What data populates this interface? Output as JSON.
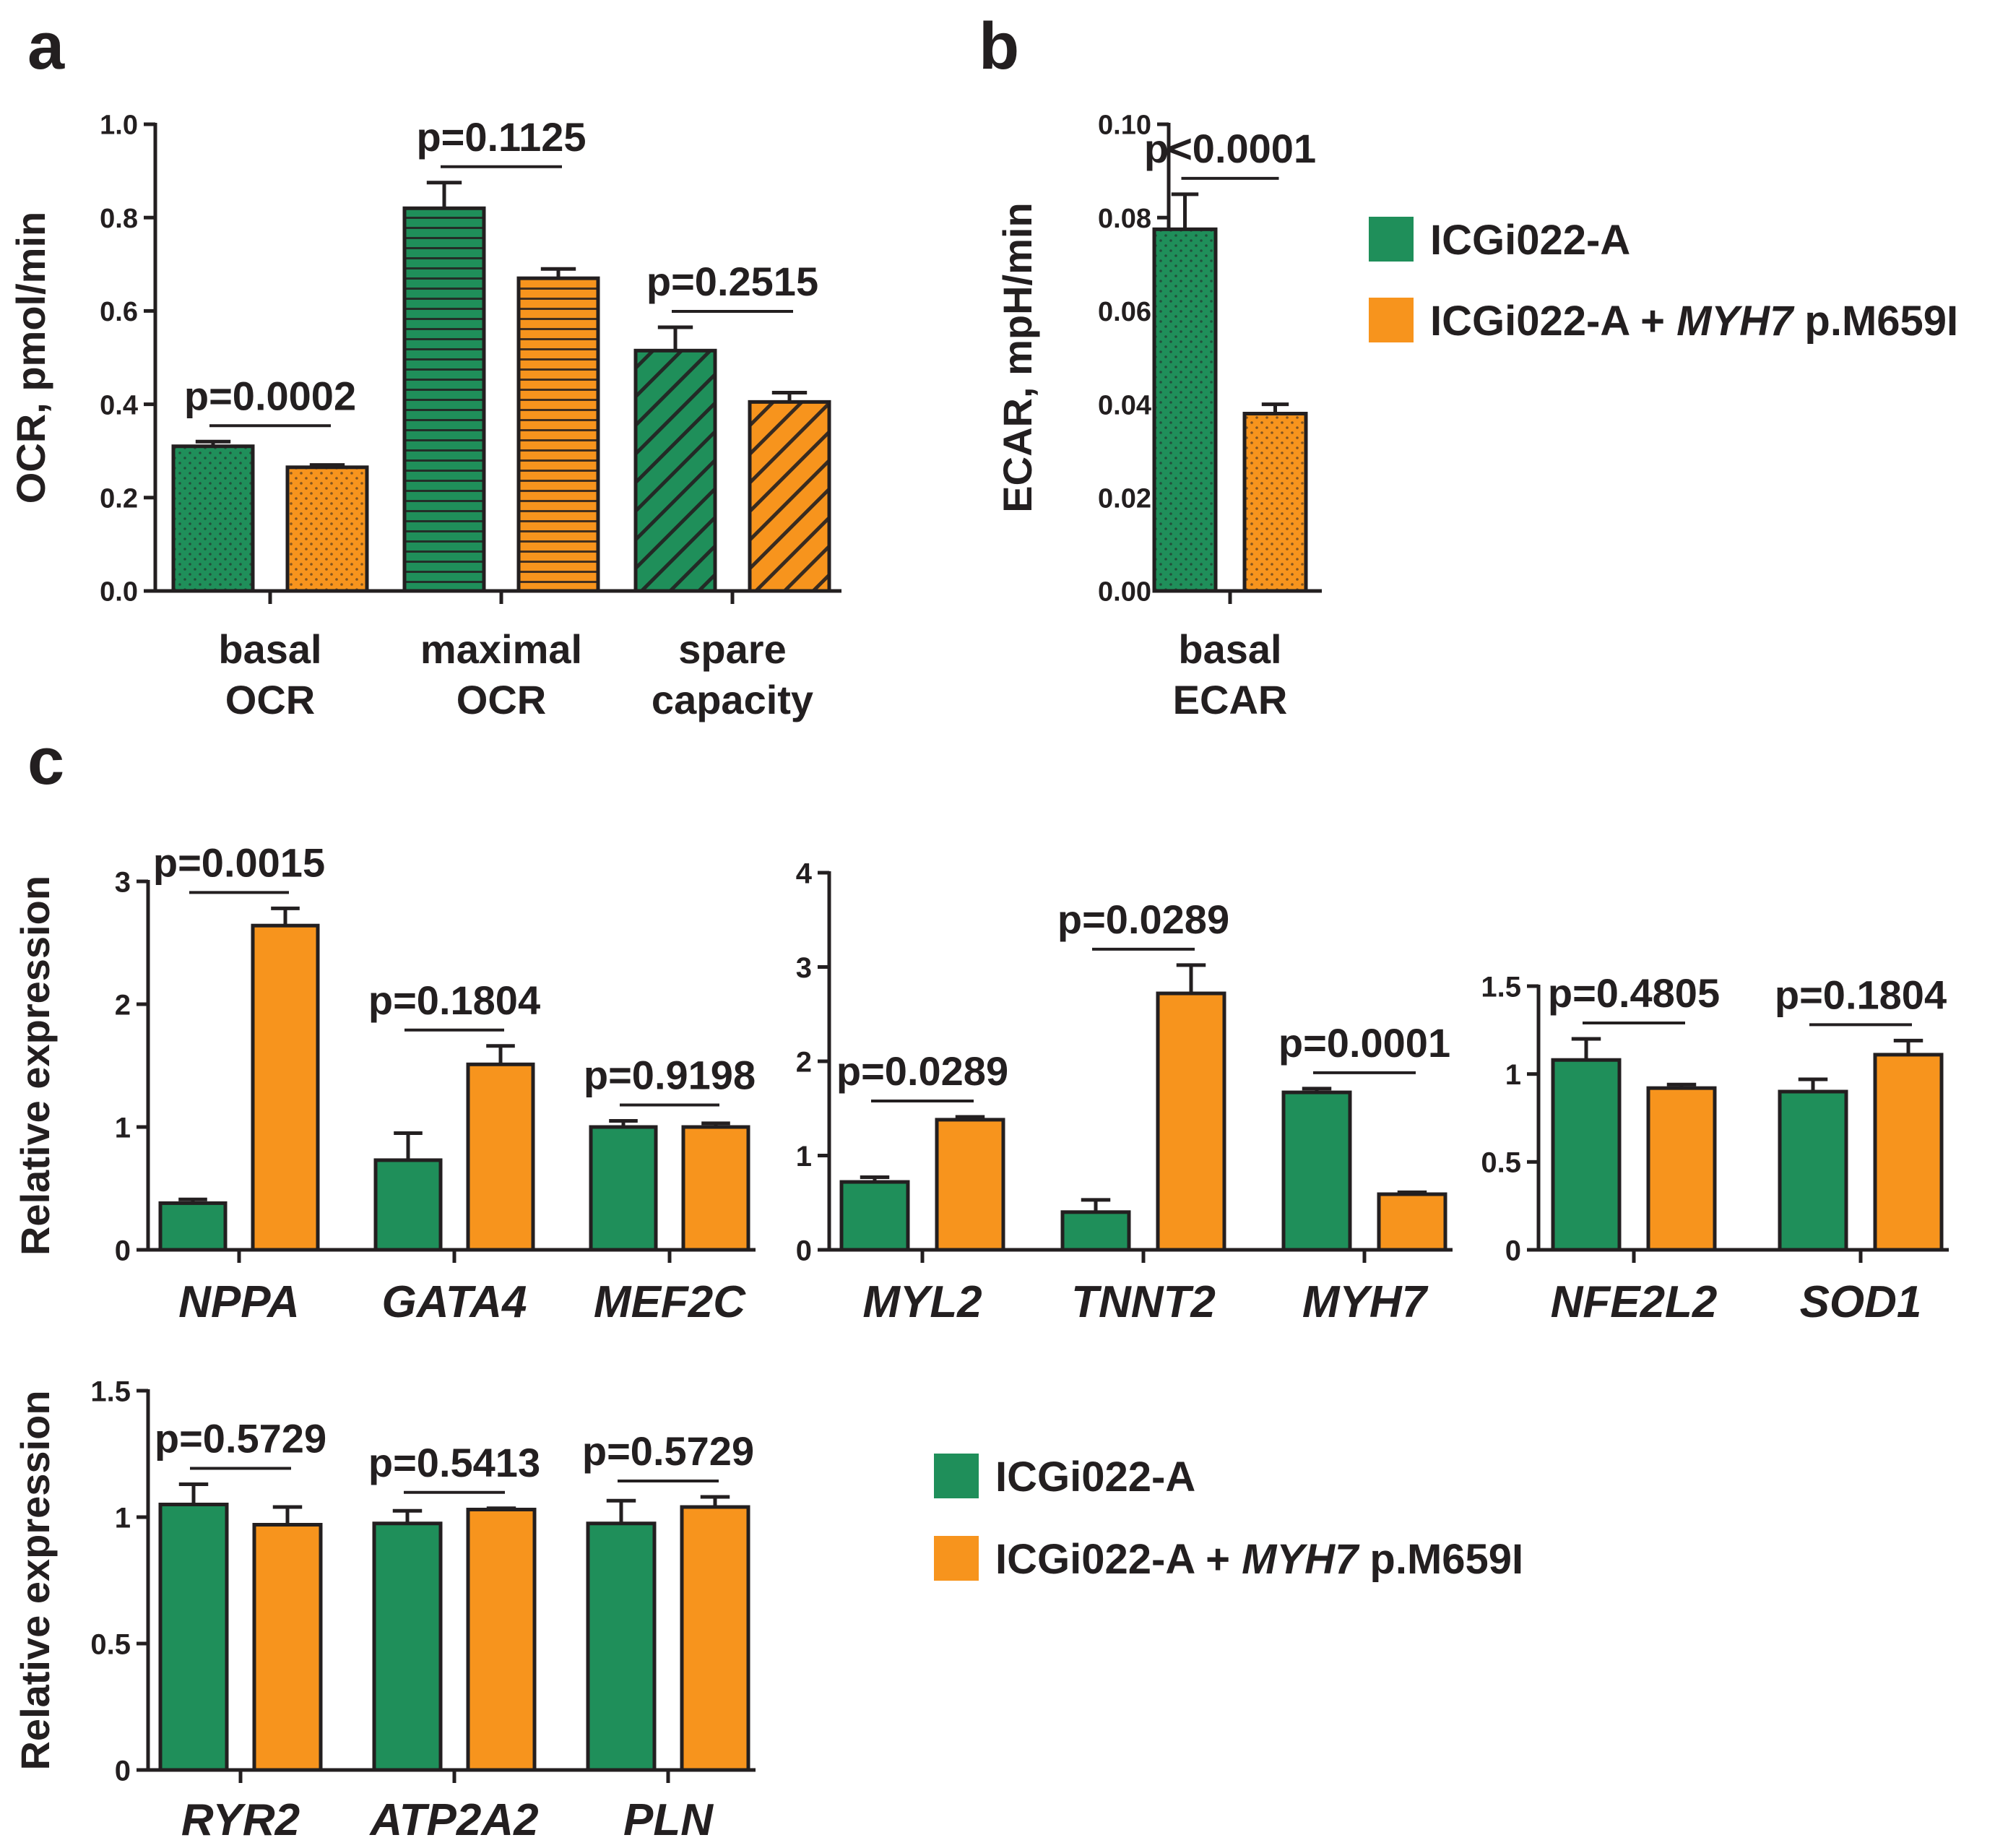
{
  "colors": {
    "control": "#1f8f5a",
    "mutant": "#f7941d",
    "axis": "#231f20"
  },
  "legend": {
    "control": "ICGi022-A",
    "mutant_prefix": "ICGi022-A + ",
    "mutant_gene": "MYH7",
    "mutant_suffix": " p.M659I"
  },
  "panels": {
    "a": {
      "letter": "a"
    },
    "b": {
      "letter": "b"
    },
    "c": {
      "letter": "c"
    }
  },
  "chart_data": [
    {
      "id": "a",
      "type": "bar",
      "ylabel": "OCR, pmol/min",
      "ylim": [
        0,
        1.0
      ],
      "yticks": [
        "0.0",
        "0.2",
        "0.4",
        "0.6",
        "0.8",
        "1.0"
      ],
      "yticks_values": [
        0,
        0.2,
        0.4,
        0.6,
        0.8,
        1.0
      ],
      "categories": [
        {
          "label": [
            "basal",
            "OCR"
          ],
          "italic": false,
          "pattern": "dots",
          "p": "p=0.0002"
        },
        {
          "label": [
            "maximal",
            "OCR"
          ],
          "italic": false,
          "pattern": "hlines",
          "p": "p=0.1125"
        },
        {
          "label": [
            "spare",
            "capacity"
          ],
          "italic": false,
          "pattern": "diag",
          "p": "p=0.2515"
        }
      ],
      "series": [
        {
          "name": "ICGi022-A",
          "values": [
            0.31,
            0.82,
            0.515
          ],
          "errors": [
            0.01,
            0.055,
            0.05
          ]
        },
        {
          "name": "ICGi022-A + MYH7 p.M659I",
          "values": [
            0.265,
            0.67,
            0.405
          ],
          "errors": [
            0.005,
            0.02,
            0.02
          ]
        }
      ]
    },
    {
      "id": "b",
      "type": "bar",
      "ylabel": "ECAR, mpH/min",
      "ylim": [
        0,
        0.1
      ],
      "yticks": [
        "0.00",
        "0.02",
        "0.04",
        "0.06",
        "0.08",
        "0.10"
      ],
      "yticks_values": [
        0,
        0.02,
        0.04,
        0.06,
        0.08,
        0.1
      ],
      "categories": [
        {
          "label": [
            "basal",
            "ECAR"
          ],
          "italic": false,
          "pattern": "dots",
          "p": "p<0.0001"
        }
      ],
      "series": [
        {
          "name": "ICGi022-A",
          "values": [
            0.0775
          ],
          "errors": [
            0.0075
          ]
        },
        {
          "name": "ICGi022-A + MYH7 p.M659I",
          "values": [
            0.038
          ],
          "errors": [
            0.002
          ]
        }
      ]
    },
    {
      "id": "c1",
      "type": "bar",
      "ylabel": "Relative expression",
      "ylim": [
        0,
        3
      ],
      "yticks": [
        "0",
        "1",
        "2",
        "3"
      ],
      "yticks_values": [
        0,
        1,
        2,
        3
      ],
      "categories": [
        {
          "label": [
            "NPPA"
          ],
          "italic": true,
          "pattern": "none",
          "p": "p=0.0015"
        },
        {
          "label": [
            "GATA4"
          ],
          "italic": true,
          "pattern": "none",
          "p": "p=0.1804"
        },
        {
          "label": [
            "MEF2C"
          ],
          "italic": true,
          "pattern": "none",
          "p": "p=0.9198"
        }
      ],
      "series": [
        {
          "name": "ICGi022-A",
          "values": [
            0.38,
            0.73,
            1.0
          ],
          "errors": [
            0.03,
            0.22,
            0.05
          ]
        },
        {
          "name": "ICGi022-A + MYH7 p.M659I",
          "values": [
            2.64,
            1.51,
            1.0
          ],
          "errors": [
            0.14,
            0.15,
            0.03
          ]
        }
      ]
    },
    {
      "id": "c2",
      "type": "bar",
      "ylabel": "",
      "ylim": [
        0,
        4
      ],
      "yticks": [
        "0",
        "1",
        "2",
        "3",
        "4"
      ],
      "yticks_values": [
        0,
        1,
        2,
        3,
        4
      ],
      "categories": [
        {
          "label": [
            "MYL2"
          ],
          "italic": true,
          "pattern": "none",
          "p": "p=0.0289"
        },
        {
          "label": [
            "TNNT2"
          ],
          "italic": true,
          "pattern": "none",
          "p": "p=0.0289"
        },
        {
          "label": [
            "MYH7"
          ],
          "italic": true,
          "pattern": "none",
          "p": "p=0.0001"
        }
      ],
      "series": [
        {
          "name": "ICGi022-A",
          "values": [
            0.72,
            0.4,
            1.67
          ],
          "errors": [
            0.05,
            0.13,
            0.04
          ]
        },
        {
          "name": "ICGi022-A + MYH7 p.M659I",
          "values": [
            1.38,
            2.72,
            0.59
          ],
          "errors": [
            0.03,
            0.3,
            0.02
          ]
        }
      ]
    },
    {
      "id": "c3",
      "type": "bar",
      "ylabel": "",
      "ylim": [
        0,
        1.5
      ],
      "yticks": [
        "0",
        "0.5",
        "1",
        "1.5"
      ],
      "yticks_values": [
        0,
        0.5,
        1,
        1.5
      ],
      "categories": [
        {
          "label": [
            "NFE2L2"
          ],
          "italic": true,
          "pattern": "none",
          "p": "p=0.4805"
        },
        {
          "label": [
            "SOD1"
          ],
          "italic": true,
          "pattern": "none",
          "p": "p=0.1804"
        }
      ],
      "series": [
        {
          "name": "ICGi022-A",
          "values": [
            1.08,
            0.9
          ],
          "errors": [
            0.12,
            0.07
          ]
        },
        {
          "name": "ICGi022-A + MYH7 p.M659I",
          "values": [
            0.92,
            1.11
          ],
          "errors": [
            0.02,
            0.08
          ]
        }
      ]
    },
    {
      "id": "c4",
      "type": "bar",
      "ylabel": "Relative expression",
      "ylim": [
        0,
        1.5
      ],
      "yticks": [
        "0",
        "0.5",
        "1",
        "1.5"
      ],
      "yticks_values": [
        0,
        0.5,
        1,
        1.5
      ],
      "categories": [
        {
          "label": [
            "RYR2"
          ],
          "italic": true,
          "pattern": "none",
          "p": "p=0.5729"
        },
        {
          "label": [
            "ATP2A2"
          ],
          "italic": true,
          "pattern": "none",
          "p": "p=0.5413"
        },
        {
          "label": [
            "PLN"
          ],
          "italic": true,
          "pattern": "none",
          "p": "p=0.5729"
        }
      ],
      "series": [
        {
          "name": "ICGi022-A",
          "values": [
            1.05,
            0.975,
            0.975
          ],
          "errors": [
            0.08,
            0.05,
            0.09
          ]
        },
        {
          "name": "ICGi022-A + MYH7 p.M659I",
          "values": [
            0.97,
            1.03,
            1.04
          ],
          "errors": [
            0.07,
            0.005,
            0.04
          ]
        }
      ]
    }
  ]
}
